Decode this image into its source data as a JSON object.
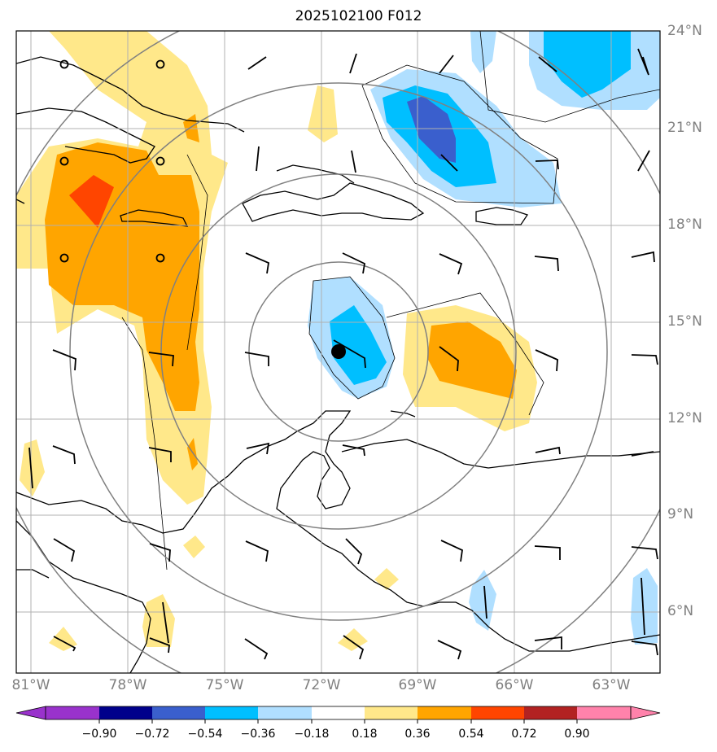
{
  "title": "2025102100 F012",
  "lat_labels": [
    "24°N",
    "21°N",
    "18°N",
    "15°N",
    "12°N",
    "9°N",
    "6°N"
  ],
  "lon_labels": [
    "81°W",
    "78°W",
    "75°W",
    "72°W",
    "69°W",
    "66°W",
    "63°W"
  ],
  "colorbar": {
    "labels": [
      "−0.90",
      "−0.72",
      "−0.54",
      "−0.36",
      "−0.18",
      "0.18",
      "0.36",
      "0.54",
      "0.72",
      "0.90"
    ],
    "colors": [
      "#9932cc",
      "#00008b",
      "#3a5fcd",
      "#00bfff",
      "#b0dfff",
      "#ffffff",
      "#ffe88a",
      "#ffa500",
      "#ff4500",
      "#b22222",
      "#ff82ab"
    ]
  },
  "colors": {
    "grid": "#b0b0b0",
    "range_rings": "#808080",
    "coast": "#000000",
    "center_marker": "#000000"
  }
}
